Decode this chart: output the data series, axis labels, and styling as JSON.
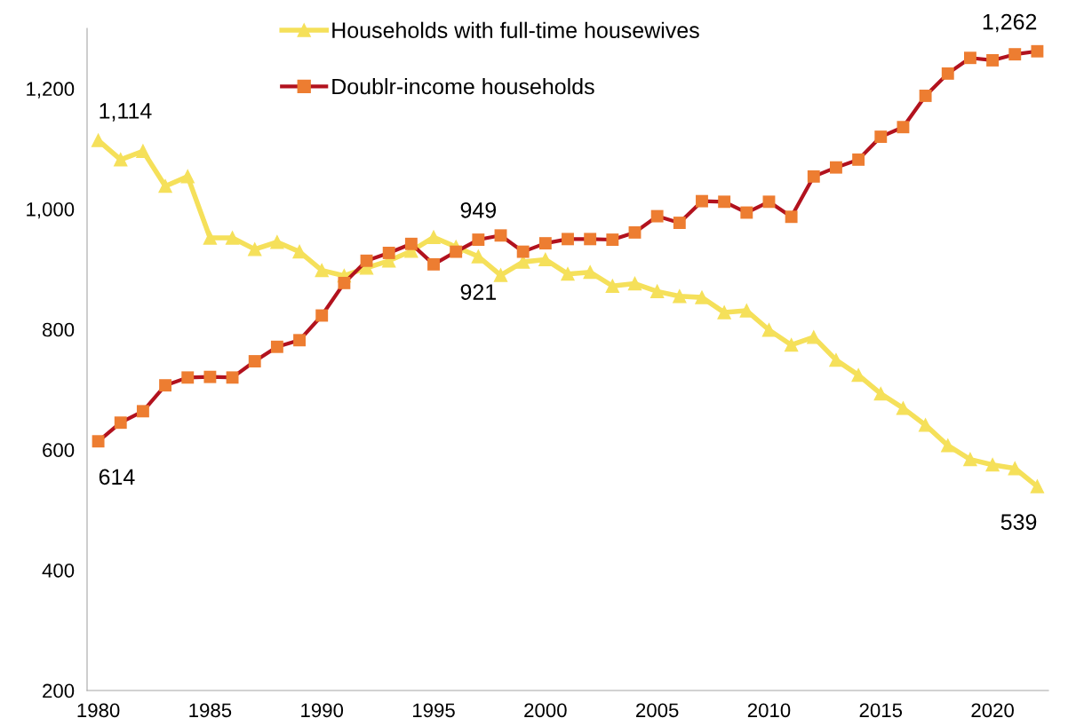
{
  "chart_data": {
    "type": "line",
    "x": [
      1980,
      1981,
      1982,
      1983,
      1984,
      1985,
      1986,
      1987,
      1988,
      1989,
      1990,
      1991,
      1992,
      1993,
      1994,
      1995,
      1996,
      1997,
      1998,
      1999,
      2000,
      2001,
      2002,
      2003,
      2004,
      2005,
      2006,
      2007,
      2008,
      2009,
      2010,
      2011,
      2012,
      2013,
      2014,
      2015,
      2016,
      2017,
      2018,
      2019,
      2020,
      2021,
      2022
    ],
    "series": [
      {
        "name": "Households with full-time housewives",
        "color": "#f5e05a",
        "marker": "triangle",
        "values": [
          1114,
          1082,
          1096,
          1038,
          1054,
          952,
          952,
          933,
          945,
          929,
          898,
          889,
          902,
          914,
          930,
          953,
          937,
          921,
          890,
          912,
          916,
          892,
          895,
          872,
          876,
          863,
          855,
          853,
          828,
          831,
          799,
          774,
          787,
          749,
          724,
          693,
          669,
          641,
          607,
          584,
          575,
          569,
          539
        ]
      },
      {
        "name": "Doublr-income households",
        "color": "#b2121e",
        "colors": [
          "#ed7d31",
          "#ed7d31",
          "#ed7d31",
          "#ed7d31",
          "#ed7d31",
          "#ed7d31",
          "#ed7d31",
          "#ed7d31",
          "#ed7d31",
          "#ed7d31",
          "#ed7d31",
          "#ed7d31",
          "#ed7d31",
          "#ed7d31",
          "#ed7d31",
          "#ed7d31",
          "#ed7d31",
          "#ed7d31",
          "#ed7d31",
          "#ed7d31",
          "#ed7d31",
          "#ed7d31",
          "#ed7d31",
          "#ed7d31",
          "#ed7d31",
          "#ed7d31",
          "#ed7d31",
          "#ed7d31",
          "#ed7d31",
          "#ed7d31",
          "#ed7d31",
          "#ed7d31",
          "#ed7d31",
          "#ed7d31",
          "#ed7d31",
          "#ed7d31",
          "#ed7d31",
          "#ed7d31",
          "#ed7d31",
          "#ed7d31",
          "#ed7d31",
          "#ed7d31",
          "#ed7d31"
        ],
        "marker": "square",
        "values": [
          614,
          645,
          664,
          707,
          720,
          721,
          720,
          747,
          771,
          782,
          823,
          877,
          914,
          927,
          942,
          908,
          929,
          949,
          956,
          929,
          943,
          950,
          950,
          949,
          961,
          988,
          977,
          1013,
          1012,
          994,
          1012,
          987,
          1054,
          1069,
          1082,
          1120,
          1136,
          1188,
          1225,
          1251,
          1247,
          1257,
          1262
        ]
      }
    ],
    "xlim": [
      1979.5,
      2022.5
    ],
    "xticks": [
      1980,
      1985,
      1990,
      1995,
      2000,
      2005,
      2010,
      2015,
      2020
    ],
    "ylim": [
      200,
      1300
    ],
    "yticks": [
      {
        "value": 200,
        "label": "200"
      },
      {
        "value": 400,
        "label": "400"
      },
      {
        "value": 600,
        "label": "600"
      },
      {
        "value": 800,
        "label": "800"
      },
      {
        "value": 1000,
        "label": "1,000"
      },
      {
        "value": 1200,
        "label": "1,200"
      }
    ],
    "annotations": [
      {
        "text": "1,114",
        "x": 1980,
        "y": 1114
      },
      {
        "text": "614",
        "x": 1980,
        "y": 614
      },
      {
        "text": "949",
        "x": 1997,
        "y": 949
      },
      {
        "text": "921",
        "x": 1997,
        "y": 921
      },
      {
        "text": "1,262",
        "x": 2022,
        "y": 1262
      },
      {
        "text": "539",
        "x": 2022,
        "y": 539
      }
    ],
    "grid": false,
    "legend": "top",
    "line_style": "solid"
  }
}
